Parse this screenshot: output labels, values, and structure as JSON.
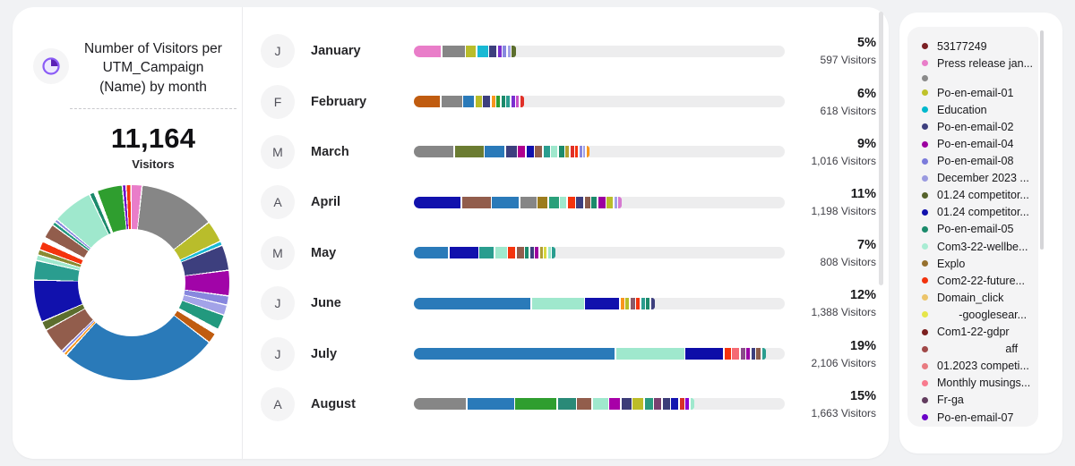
{
  "header": {
    "title_lines": [
      "Number of Visitors per",
      "UTM_Campaign",
      "(Name) by month"
    ],
    "icon": "pie-chart-icon"
  },
  "summary": {
    "total": "11,164",
    "label": "Visitors"
  },
  "months": [
    {
      "initial": "J",
      "name": "January",
      "percent": "5%",
      "visitors": "597 Visitors",
      "bar": {
        "segments": [
          [
            "#e97dc9",
            30
          ],
          [
            "#868686",
            25
          ],
          [
            "#b9bd2b",
            11
          ],
          [
            "#19b9d4",
            12
          ],
          [
            "#3d3f7e",
            8
          ],
          [
            "#7b2fd0",
            4
          ],
          [
            "#8787de",
            4
          ],
          [
            "#a3a3e8",
            3
          ],
          [
            "#5c6e2e",
            5
          ]
        ]
      }
    },
    {
      "initial": "F",
      "name": "February",
      "percent": "6%",
      "visitors": "618 Visitors",
      "bar": {
        "segments": [
          [
            "#c05c10",
            29
          ],
          [
            "#868686",
            23
          ],
          [
            "#2a7ab9",
            12
          ],
          [
            "#b8bc28",
            7
          ],
          [
            "#3d3f7e",
            8
          ],
          [
            "#f8961d",
            4
          ],
          [
            "#2f9e2f",
            4
          ],
          [
            "#1b8a6b",
            4
          ],
          [
            "#2a9d8f",
            4
          ],
          [
            "#7b2fd0",
            4
          ],
          [
            "#c94fc9",
            3
          ],
          [
            "#e03028",
            4
          ]
        ]
      }
    },
    {
      "initial": "M",
      "name": "March",
      "percent": "9%",
      "visitors": "1,016 Visitors",
      "bar": {
        "segments": [
          [
            "#868686",
            44
          ],
          [
            "#6b7c32",
            32
          ],
          [
            "#2a7ab9",
            22
          ],
          [
            "#3d3f7e",
            12
          ],
          [
            "#b0008e",
            8
          ],
          [
            "#1111ad",
            8
          ],
          [
            "#925d4c",
            8
          ],
          [
            "#2a9d8f",
            7
          ],
          [
            "#9fe8cd",
            7
          ],
          [
            "#1b8a6b",
            6
          ],
          [
            "#b0a030",
            4
          ],
          [
            "#e03028",
            4
          ],
          [
            "#f5330d",
            3
          ],
          [
            "#8787de",
            3
          ],
          [
            "#a3a3e8",
            2
          ],
          [
            "#f8961d",
            3
          ]
        ]
      }
    },
    {
      "initial": "A",
      "name": "April",
      "percent": "11%",
      "visitors": "1,198 Visitors",
      "bar": {
        "segments": [
          [
            "#1111ad",
            52
          ],
          [
            "#925d4c",
            32
          ],
          [
            "#2a7ab9",
            30
          ],
          [
            "#868686",
            18
          ],
          [
            "#9c7c1e",
            11
          ],
          [
            "#2aa07a",
            11
          ],
          [
            "#9fe8cd",
            7
          ],
          [
            "#f5330d",
            8
          ],
          [
            "#3d3f7e",
            8
          ],
          [
            "#8a5a4a",
            6
          ],
          [
            "#1b8a6b",
            6
          ],
          [
            "#9c00a0",
            8
          ],
          [
            "#b9bd2b",
            7
          ],
          [
            "#a3a3e8",
            3
          ],
          [
            "#d67ad0",
            4
          ]
        ]
      }
    },
    {
      "initial": "M",
      "name": "May",
      "percent": "7%",
      "visitors": "808 Visitors",
      "bar": {
        "segments": [
          [
            "#2a7ab9",
            38
          ],
          [
            "#1111ad",
            32
          ],
          [
            "#2a9d8f",
            16
          ],
          [
            "#9fe8cd",
            13
          ],
          [
            "#f5330d",
            8
          ],
          [
            "#925d4c",
            8
          ],
          [
            "#1b8a6b",
            4
          ],
          [
            "#3d3f7e",
            4
          ],
          [
            "#9c00a0",
            4
          ],
          [
            "#b0a030",
            3
          ],
          [
            "#d8d840",
            3
          ],
          [
            "#9fe8cd",
            3
          ],
          [
            "#2a9d8f",
            4
          ]
        ]
      }
    },
    {
      "initial": "J",
      "name": "June",
      "percent": "12%",
      "visitors": "1,388 Visitors",
      "bar": {
        "segments": [
          [
            "#2a7ab9",
            130
          ],
          [
            "#9fe8cd",
            58
          ],
          [
            "#1111ad",
            38
          ],
          [
            "#f8961d",
            4
          ],
          [
            "#b8bc28",
            4
          ],
          [
            "#8a5a6a",
            5
          ],
          [
            "#f5330d",
            4
          ],
          [
            "#2a9d8f",
            4
          ],
          [
            "#1b8a6b",
            4
          ],
          [
            "#3d3f7e",
            4
          ]
        ]
      }
    },
    {
      "initial": "J",
      "name": "July",
      "percent": "19%",
      "visitors": "2,106 Visitors",
      "bar": {
        "segments": [
          [
            "#2a7ab9",
            224
          ],
          [
            "#9fe8cd",
            76
          ],
          [
            "#0d0da8",
            42
          ],
          [
            "#f5330d",
            7
          ],
          [
            "#f56a74",
            8
          ],
          [
            "#8a4a8a",
            5
          ],
          [
            "#9c00a8",
            4
          ],
          [
            "#3d3f7e",
            4
          ],
          [
            "#8a5a4a",
            5
          ],
          [
            "#2a9d8f",
            4
          ]
        ]
      }
    },
    {
      "initial": "A",
      "name": "August",
      "percent": "15%",
      "visitors": "1,663 Visitors",
      "bar": {
        "segments": [
          [
            "#868686",
            58
          ],
          [
            "#2a7ab9",
            52
          ],
          [
            "#2f9e2f",
            46
          ],
          [
            "#2a8a78",
            20
          ],
          [
            "#925d4c",
            16
          ],
          [
            "#9fe8cd",
            17
          ],
          [
            "#a800a8",
            12
          ],
          [
            "#3c3c78",
            11
          ],
          [
            "#bcbc28",
            12
          ],
          [
            "#2a9a80",
            9
          ],
          [
            "#7a4070",
            8
          ],
          [
            "#3c3c78",
            8
          ],
          [
            "#1414b0",
            8
          ],
          [
            "#d83028",
            5
          ],
          [
            "#8a00d0",
            4
          ],
          [
            "#9fe8cd",
            4
          ]
        ]
      }
    }
  ],
  "legend": {
    "items": [
      {
        "color": "#7b2024",
        "label": "53177249"
      },
      {
        "color": "#e97dc9",
        "label": "Press release jan..."
      },
      {
        "color": "#8a8a8a",
        "label": ""
      },
      {
        "color": "#bfc22b",
        "label": "Po-en-email-01"
      },
      {
        "color": "#00b8cd",
        "label": "Education"
      },
      {
        "color": "#3d3f7e",
        "label": "Po-en-email-02"
      },
      {
        "color": "#9c00a0",
        "label": "Po-en-email-04"
      },
      {
        "color": "#7b7bdb",
        "label": "Po-en-email-08"
      },
      {
        "color": "#9a9ae0",
        "label": "December 2023 ..."
      },
      {
        "color": "#55622b",
        "label": "01.24 competitor..."
      },
      {
        "color": "#1111ad",
        "label": "01.24 competitor..."
      },
      {
        "color": "#1b8a6b",
        "label": "Po-en-email-05"
      },
      {
        "color": "#a8ecd3",
        "label": "Com3-22-wellbe..."
      },
      {
        "color": "#96702e",
        "label": "Explo"
      },
      {
        "color": "#f2330d",
        "label": "Com2-22-future..."
      },
      {
        "color": "#ecc46a",
        "label": "Domain_click"
      },
      {
        "color": "#e6e64a",
        "label": "       -googlesear..."
      },
      {
        "color": "#7b1f1f",
        "label": "Com1-22-gdpr"
      },
      {
        "color": "#a04848",
        "label": "                      aff"
      },
      {
        "color": "#e87a80",
        "label": "01.2023 competi..."
      },
      {
        "color": "#f87a8e",
        "label": "Monthly musings..."
      },
      {
        "color": "#623c5e",
        "label": "Fr-ga"
      },
      {
        "color": "#6a00c8",
        "label": "Po-en-email-07"
      }
    ]
  },
  "colors": {
    "page_bg": "#f1f2f4",
    "card_bg": "#ffffff",
    "track": "#ededee",
    "legend_bg": "#f4f4f5",
    "accent_icon": "#8b5cf6"
  },
  "chart_data": [
    {
      "type": "pie",
      "variant": "donut",
      "title": "Number of Visitors per UTM_Campaign (Name) by month",
      "total": 11164,
      "total_label": "Visitors",
      "note": "slice labels not shown on chart; shares estimated from arc angles, colors map to legend",
      "slices": [
        [
          "#e97dc9",
          1.6
        ],
        [
          "#868686",
          12.5
        ],
        [
          "#b9bd2b",
          3.4
        ],
        [
          "#19b9d4",
          0.5
        ],
        [
          "#3d3f7e",
          4.0
        ],
        [
          "#a104a8",
          4.0
        ],
        [
          "#8787de",
          1.3
        ],
        [
          "#a3a3e8",
          1.5
        ],
        [
          "#22997e",
          2.3
        ],
        [
          "#ffffff",
          0.6
        ],
        [
          "#c05c10",
          1.5
        ],
        [
          "#2a7ab9",
          26.0
        ],
        [
          "#f8961d",
          0.3
        ],
        [
          "#8787de",
          0.3
        ],
        [
          "#925d4c",
          4.0
        ],
        [
          "#5c6e2e",
          1.3
        ],
        [
          "#1111ad",
          6.8
        ],
        [
          "#2a9d8f",
          3.0
        ],
        [
          "#9fe8cd",
          0.7
        ],
        [
          "#8a8a30",
          0.7
        ],
        [
          "#f5330d",
          1.2
        ],
        [
          "#ffffff",
          0.5
        ],
        [
          "#925d4c",
          2.2
        ],
        [
          "#22997e",
          0.4
        ],
        [
          "#8787de",
          0.3
        ],
        [
          "#9fe8cd",
          6.5
        ],
        [
          "#1b8a6b",
          0.6
        ],
        [
          "#ffffff",
          0.3
        ],
        [
          "#2f9e2f",
          4.0
        ],
        [
          "#6a00c8",
          0.4
        ],
        [
          "#f5330d",
          0.6
        ]
      ]
    },
    {
      "type": "bar",
      "variant": "stacked-horizontal",
      "categories": [
        "January",
        "February",
        "March",
        "April",
        "May",
        "June",
        "July",
        "August"
      ],
      "values": [
        597,
        618,
        1016,
        1198,
        808,
        1388,
        2106,
        1663
      ],
      "percent_labels": [
        "5%",
        "6%",
        "9%",
        "11%",
        "7%",
        "12%",
        "19%",
        "15%"
      ],
      "xlim": [
        0,
        2106
      ],
      "note": "per-campaign segment values unlabeled; segment pixel widths recorded in months[].bar.segments"
    }
  ]
}
